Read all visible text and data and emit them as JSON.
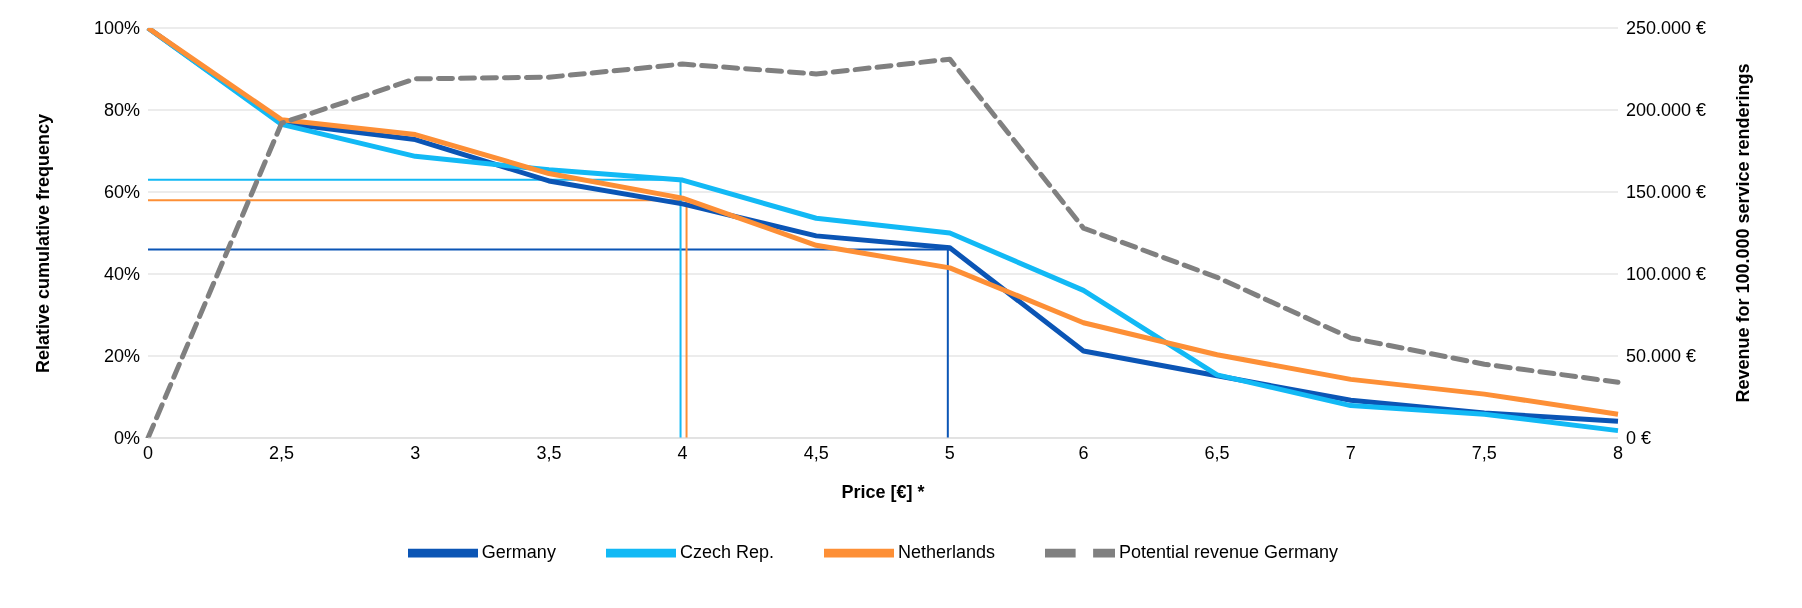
{
  "chart_data": {
    "type": "line",
    "xlabel": "Price [€] *",
    "ylabel": "Relative cumulative frequency",
    "y2label": "Revenue for 100.000 service renderings",
    "categories": [
      "0",
      "2,5",
      "3",
      "3,5",
      "4",
      "4,5",
      "5",
      "6",
      "6,5",
      "7",
      "7,5",
      "8"
    ],
    "series": [
      {
        "name": "Germany",
        "color": "#0b55b5",
        "line_style": "solid",
        "values": [
          100,
          76.8,
          72.8,
          62.7,
          57.1,
          49.3,
          46.4,
          21.2,
          15.2,
          9.2,
          6.1,
          4.1
        ]
      },
      {
        "name": "Czech Rep.",
        "color": "#12b9f5",
        "line_style": "solid",
        "values": [
          100,
          76.5,
          68.7,
          65.4,
          62.9,
          53.6,
          50,
          36,
          15.4,
          7.9,
          5.8,
          1.8
        ]
      },
      {
        "name": "Netherlands",
        "color": "#fd8f36",
        "line_style": "solid",
        "values": [
          100,
          77.6,
          74,
          64.5,
          58.5,
          47,
          41.5,
          28.1,
          20.3,
          14.3,
          10.7,
          5.8
        ]
      },
      {
        "name": "Potential revenue Germany",
        "color": "#808080",
        "line_style": "dashed",
        "axis": "y2",
        "values": [
          0,
          192000,
          219000,
          220000,
          228000,
          222000,
          231000,
          128000,
          98000,
          61000,
          45000,
          34000
        ]
      }
    ],
    "ylim": [
      0,
      100
    ],
    "yticks": [
      {
        "value": 0,
        "label": "0%"
      },
      {
        "value": 20,
        "label": "20%"
      },
      {
        "value": 40,
        "label": "40%"
      },
      {
        "value": 60,
        "label": "60%"
      },
      {
        "value": 80,
        "label": "80%"
      },
      {
        "value": 100,
        "label": "100%"
      }
    ],
    "y2lim": [
      0,
      250000
    ],
    "y2ticks": [
      {
        "value": 0,
        "label": "0 €"
      },
      {
        "value": 50000,
        "label": "50.000 €"
      },
      {
        "value": 100000,
        "label": "100.000 €"
      },
      {
        "value": 150000,
        "label": "150.000 €"
      },
      {
        "value": 200000,
        "label": "200.000 €"
      },
      {
        "value": 250000,
        "label": "250.000 €"
      }
    ],
    "ref_lines": [
      {
        "axis": "y",
        "value": 63,
        "color": "#12b9f5"
      },
      {
        "axis": "y",
        "value": 58,
        "color": "#fd8f36"
      },
      {
        "axis": "y",
        "value": 46,
        "color": "#0b55b5"
      },
      {
        "axis": "x",
        "value": "4",
        "color": "#12b9f5"
      },
      {
        "axis": "x",
        "value": "4",
        "color": "#fd8f36"
      },
      {
        "axis": "x",
        "value": "5",
        "color": "#0b55b5"
      }
    ],
    "grid": "y",
    "legend": "bottom",
    "marker": "none"
  }
}
